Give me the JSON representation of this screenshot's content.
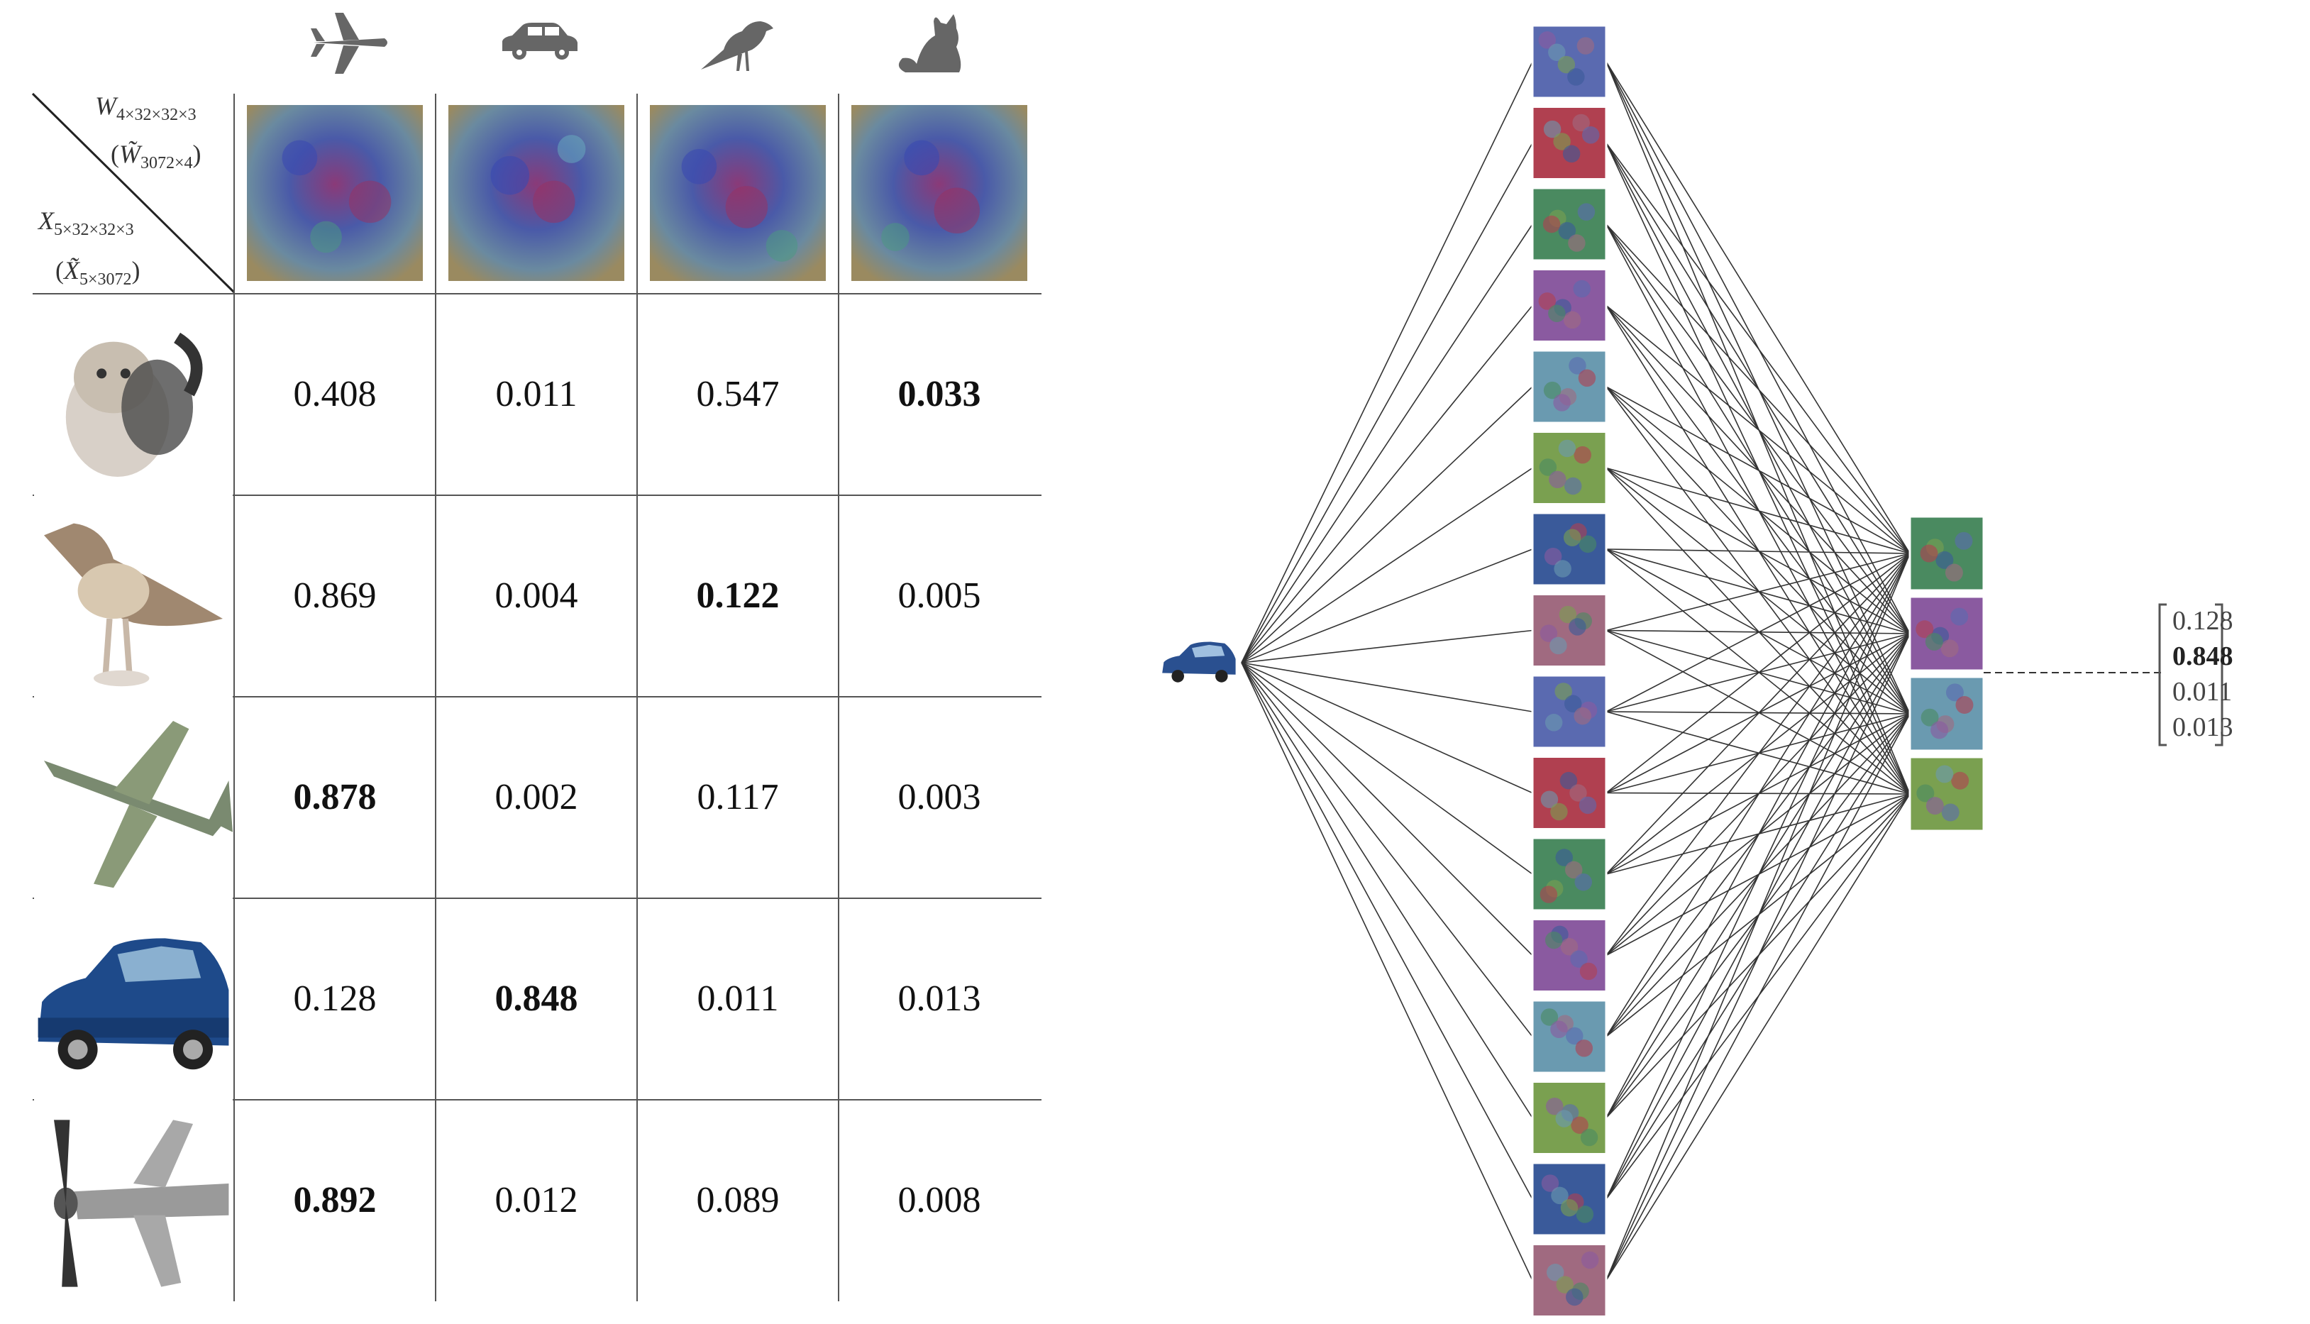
{
  "table": {
    "corner": {
      "w_main": "W",
      "w_sub": "4×32×32×3",
      "w_tilde": "W̃",
      "w_tilde_sub": "3072×4",
      "x_main": "X",
      "x_sub": "5×32×32×3",
      "x_tilde": "X̃",
      "x_tilde_sub": "5×3072"
    },
    "class_icons": [
      "airplane-icon",
      "car-icon",
      "bird-icon",
      "cat-icon"
    ],
    "row_images": [
      "kitten-image",
      "bird-image",
      "airplane-image",
      "car-image",
      "propeller-airplane-image"
    ],
    "rows": [
      {
        "values": [
          "0.408",
          "0.011",
          "0.547",
          "0.033"
        ],
        "bold": 3
      },
      {
        "values": [
          "0.869",
          "0.004",
          "0.122",
          "0.005"
        ],
        "bold": 2
      },
      {
        "values": [
          "0.878",
          "0.002",
          "0.117",
          "0.003"
        ],
        "bold": 0
      },
      {
        "values": [
          "0.128",
          "0.848",
          "0.011",
          "0.013"
        ],
        "bold": 1
      },
      {
        "values": [
          "0.892",
          "0.012",
          "0.089",
          "0.008"
        ],
        "bold": 0
      }
    ]
  },
  "network": {
    "input_image": "car-input-image",
    "hidden_count": 16,
    "output_count": 4,
    "output_vector": [
      "0.128",
      "0.848",
      "0.011",
      "0.013"
    ],
    "output_bold_index": 1
  }
}
